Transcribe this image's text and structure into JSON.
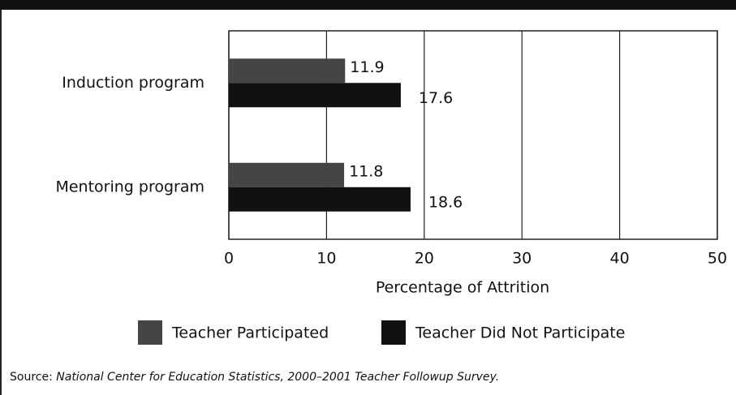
{
  "chart_data": {
    "type": "hbar",
    "categories": [
      "Induction program",
      "Mentoring program"
    ],
    "series": [
      {
        "name": "Teacher Participated",
        "color": "#454545",
        "values": [
          11.9,
          11.8
        ]
      },
      {
        "name": "Teacher Did Not Participate",
        "color": "#111111",
        "values": [
          17.6,
          18.6
        ]
      }
    ],
    "xlim": [
      0,
      50
    ],
    "xticks": [
      0,
      10,
      20,
      30,
      40,
      50
    ],
    "grid": true,
    "x_label": "Percentage of Attrition",
    "source": {
      "prefix": "Source:",
      "text": "National Center for Education Statistics, 2000–2001 Teacher Followup Survey."
    }
  }
}
